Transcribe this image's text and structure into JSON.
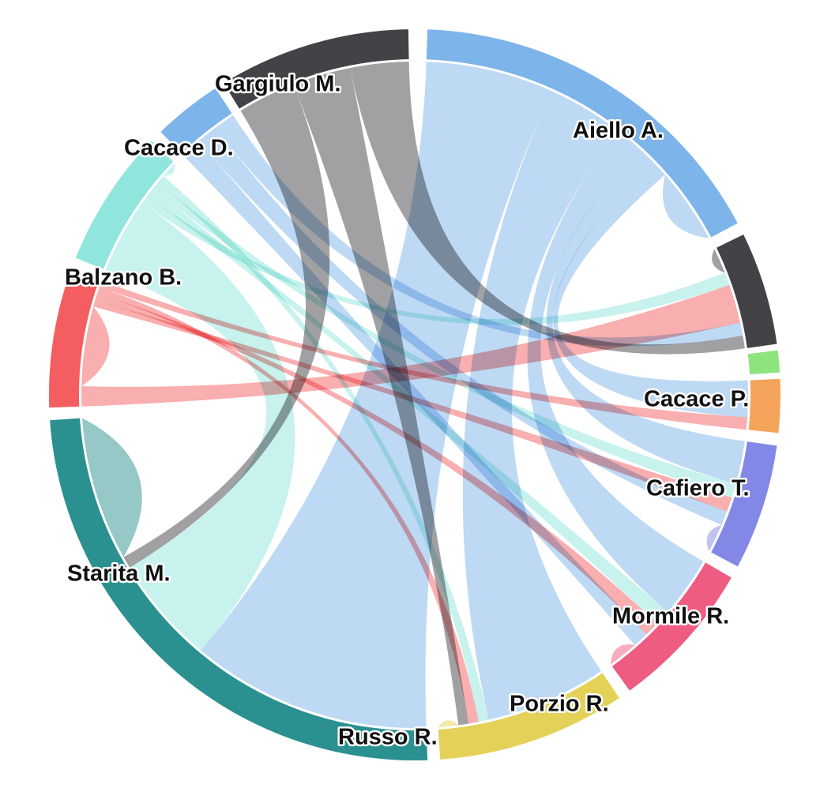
{
  "chart_data": {
    "type": "chord",
    "nodes": [
      {
        "name": "Aiello A.",
        "color": "#7db4ea"
      },
      {
        "name": "Cacace P.",
        "color": "#434347"
      },
      {
        "name": "Cafiero T.",
        "color": "#8ee47c"
      },
      {
        "name": "",
        "color": "#f5a55b"
      },
      {
        "name": "Mormile R.",
        "color": "#8388e6"
      },
      {
        "name": "Porzio R.",
        "color": "#ee5c82"
      },
      {
        "name": "Russo R.",
        "color": "#e4d158"
      },
      {
        "name": "Starita M.",
        "color": "#2b9190"
      },
      {
        "name": "Balzano B.",
        "color": "#f45e60"
      },
      {
        "name": "Cacace D.",
        "color": "#90e6dc"
      },
      {
        "name": "Gargiulo M.",
        "color": "#7db4ea"
      },
      {
        "name": "",
        "color": "#434347"
      }
    ],
    "links": [
      {
        "source": "Aiello A.",
        "target": "Starita M.",
        "value": 20
      },
      {
        "source": "Aiello A.",
        "target": "Russo R.",
        "value": 12
      },
      {
        "source": "Aiello A.",
        "target": "Porzio R.",
        "value": 4
      },
      {
        "source": "Aiello A.",
        "target": "Mormile R.",
        "value": 3
      },
      {
        "source": "Aiello A.",
        "target": "",
        "value": 3
      },
      {
        "source": "Aiello A.",
        "target": "Aiello A.",
        "value": 6
      },
      {
        "source": "Cacace P.",
        "target": "Cacace P.",
        "value": 1
      },
      {
        "source": "Cacace D.",
        "target": "Starita M.",
        "value": 9
      },
      {
        "source": "Cacace D.",
        "target": "Cacace P.",
        "value": 1
      },
      {
        "source": "Cacace D.",
        "target": "Porzio R.",
        "value": 1
      },
      {
        "source": "Cacace D.",
        "target": "Mormile R.",
        "value": 1
      },
      {
        "source": "Cacace D.",
        "target": "Russo R.",
        "value": 1
      },
      {
        "source": "Cacace D.",
        "target": "Cacace D.",
        "value": 1
      },
      {
        "source": "Balzano B.",
        "target": "Cacace P.",
        "value": 3
      },
      {
        "source": "Balzano B.",
        "target": "Balzano B.",
        "value": 6
      },
      {
        "source": "Balzano B.",
        "target": "Mormile R.",
        "value": 1
      },
      {
        "source": "Balzano B.",
        "target": "Porzio R.",
        "value": 1
      },
      {
        "source": "Balzano B.",
        "target": "Russo R.",
        "value": 1
      },
      {
        "source": "Balzano B.",
        "target": "",
        "value": 1
      },
      {
        "source": "Gargiulo M.",
        "target": "Porzio R.",
        "value": 1
      },
      {
        "source": "Gargiulo M.",
        "target": "Mormile R.",
        "value": 1
      },
      {
        "source": "Gargiulo M.",
        "target": "Cacace P.",
        "value": 1
      },
      {
        "source": "",
        "target": "Starita M.",
        "value": 1
      },
      {
        "source": "",
        "target": "Russo R.",
        "value": 1
      },
      {
        "source": "",
        "target": "Cacace P.",
        "value": 1
      },
      {
        "source": "Starita M.",
        "target": "Starita M.",
        "value": 6
      },
      {
        "source": "Russo R.",
        "target": "Russo R.",
        "value": 1
      },
      {
        "source": "Porzio R.",
        "target": "Porzio R.",
        "value": 1
      },
      {
        "source": "Mormile R.",
        "target": "Mormile R.",
        "value": 1
      }
    ]
  }
}
